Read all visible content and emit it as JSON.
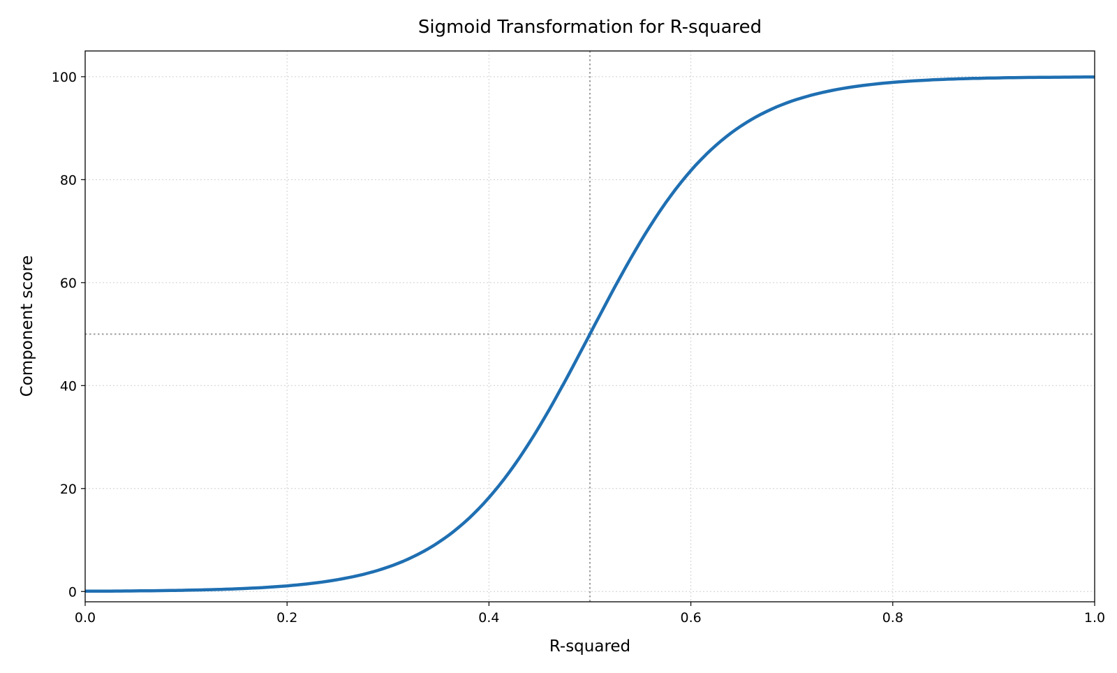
{
  "chart_data": {
    "type": "line",
    "title": "Sigmoid Transformation for R-squared",
    "xlabel": "R-squared",
    "ylabel": "Component score",
    "xlim": [
      0.0,
      1.0
    ],
    "ylim": [
      -2,
      105
    ],
    "xticks": [
      "0.0",
      "0.2",
      "0.4",
      "0.6",
      "0.8",
      "1.0"
    ],
    "yticks": [
      "0",
      "20",
      "40",
      "60",
      "80",
      "100"
    ],
    "grid": true,
    "series": [
      {
        "color": "#1f6fb2",
        "x": [
          0.0,
          0.05,
          0.1,
          0.15,
          0.2,
          0.25,
          0.3,
          0.35,
          0.4,
          0.45,
          0.5,
          0.55,
          0.6,
          0.65,
          0.7,
          0.75,
          0.8,
          0.85,
          0.9,
          0.95,
          1.0
        ],
        "y": [
          0.06,
          0.12,
          0.25,
          0.52,
          1.1,
          2.3,
          4.7,
          9.5,
          18.2,
          32.1,
          50.0,
          67.9,
          81.8,
          90.5,
          95.3,
          97.7,
          98.9,
          99.5,
          99.8,
          99.9,
          99.94
        ]
      }
    ],
    "reference_lines": [
      {
        "axis": "x",
        "value": 0.5,
        "color": "#a0a0a0",
        "style": "dotted"
      },
      {
        "axis": "y",
        "value": 50,
        "color": "#a0a0a0",
        "style": "dotted"
      }
    ]
  }
}
